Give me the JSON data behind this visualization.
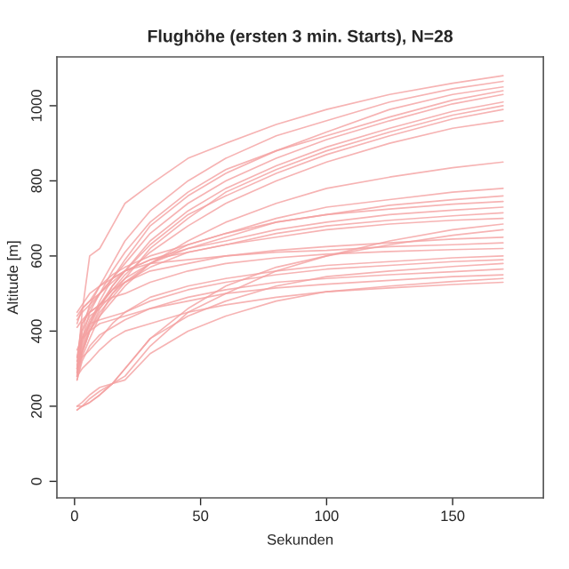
{
  "chart_data": {
    "type": "line",
    "title": "Flughöhe (ersten 3 min. Starts), N=28",
    "xlabel": "Sekunden",
    "ylabel": "Altitude [m]",
    "x": [
      1,
      3,
      6,
      10,
      15,
      20,
      30,
      45,
      60,
      80,
      100,
      125,
      150,
      170
    ],
    "xlim": [
      -7,
      186
    ],
    "ylim": [
      -44,
      1130
    ],
    "xticks": [
      0,
      50,
      100,
      150
    ],
    "yticks": [
      0,
      200,
      400,
      600,
      800,
      1000
    ],
    "line_style": "solid",
    "marker": "none",
    "series": [
      {
        "color": "#f4a0a0",
        "values": [
          300,
          450,
          600,
          620,
          680,
          740,
          790,
          860,
          900,
          950,
          990,
          1030,
          1060,
          1080
        ]
      },
      {
        "color": "#f4a0a0",
        "values": [
          290,
          400,
          470,
          520,
          580,
          640,
          720,
          800,
          860,
          920,
          960,
          1010,
          1045,
          1065
        ]
      },
      {
        "color": "#f4a0a0",
        "values": [
          280,
          380,
          450,
          500,
          540,
          590,
          680,
          760,
          820,
          880,
          930,
          990,
          1030,
          1050
        ]
      },
      {
        "color": "#f4a0a0",
        "values": [
          320,
          420,
          460,
          500,
          560,
          610,
          690,
          770,
          830,
          880,
          920,
          970,
          1015,
          1040
        ]
      },
      {
        "color": "#f4a0a0",
        "values": [
          300,
          360,
          420,
          480,
          540,
          580,
          660,
          740,
          800,
          860,
          910,
          960,
          1005,
          1030
        ]
      },
      {
        "color": "#f4a0a0",
        "values": [
          280,
          340,
          400,
          460,
          520,
          560,
          640,
          720,
          780,
          840,
          890,
          940,
          985,
          1010
        ]
      },
      {
        "color": "#f4a0a0",
        "values": [
          270,
          330,
          380,
          440,
          500,
          540,
          620,
          700,
          770,
          830,
          880,
          930,
          975,
          1000
        ]
      },
      {
        "color": "#f4a0a0",
        "values": [
          290,
          350,
          410,
          470,
          520,
          560,
          630,
          710,
          760,
          820,
          870,
          920,
          965,
          990
        ]
      },
      {
        "color": "#f4a0a0",
        "values": [
          310,
          370,
          420,
          470,
          510,
          550,
          610,
          680,
          740,
          800,
          850,
          900,
          940,
          960
        ]
      },
      {
        "color": "#f4a0a0",
        "values": [
          300,
          350,
          400,
          440,
          480,
          520,
          580,
          640,
          690,
          740,
          780,
          810,
          835,
          850
        ]
      },
      {
        "color": "#f4a0a0",
        "values": [
          290,
          340,
          400,
          450,
          490,
          530,
          580,
          630,
          660,
          700,
          730,
          750,
          770,
          780
        ]
      },
      {
        "color": "#f4a0a0",
        "values": [
          300,
          380,
          430,
          470,
          510,
          540,
          580,
          620,
          650,
          690,
          710,
          735,
          750,
          760
        ]
      },
      {
        "color": "#f4a0a0",
        "values": [
          420,
          460,
          480,
          520,
          550,
          570,
          600,
          630,
          660,
          690,
          710,
          725,
          738,
          745
        ]
      },
      {
        "color": "#f4a0a0",
        "values": [
          440,
          460,
          480,
          500,
          540,
          560,
          590,
          620,
          640,
          670,
          690,
          710,
          722,
          730
        ]
      },
      {
        "color": "#f4a0a0",
        "values": [
          280,
          400,
          440,
          460,
          500,
          530,
          570,
          610,
          630,
          660,
          680,
          695,
          707,
          715
        ]
      },
      {
        "color": "#f4a0a0",
        "values": [
          430,
          450,
          470,
          500,
          530,
          560,
          590,
          610,
          630,
          650,
          670,
          685,
          695,
          700
        ]
      },
      {
        "color": "#f4a0a0",
        "values": [
          200,
          200,
          210,
          230,
          260,
          280,
          360,
          450,
          500,
          560,
          600,
          640,
          670,
          685
        ]
      },
      {
        "color": "#f4a0a0",
        "values": [
          190,
          200,
          220,
          240,
          260,
          300,
          380,
          460,
          520,
          570,
          600,
          630,
          655,
          670
        ]
      },
      {
        "color": "#f4a0a0",
        "values": [
          330,
          420,
          450,
          470,
          510,
          530,
          560,
          580,
          600,
          615,
          625,
          635,
          645,
          650
        ]
      },
      {
        "color": "#f4a0a0",
        "values": [
          450,
          470,
          500,
          520,
          540,
          560,
          580,
          590,
          600,
          610,
          615,
          625,
          630,
          635
        ]
      },
      {
        "color": "#f4a0a0",
        "values": [
          410,
          430,
          450,
          470,
          490,
          500,
          530,
          560,
          580,
          595,
          605,
          612,
          617,
          620
        ]
      },
      {
        "color": "#f4a0a0",
        "values": [
          320,
          330,
          350,
          380,
          420,
          450,
          490,
          520,
          540,
          560,
          575,
          585,
          595,
          600
        ]
      },
      {
        "color": "#f4a0a0",
        "values": [
          350,
          380,
          420,
          430,
          440,
          450,
          480,
          510,
          530,
          550,
          565,
          575,
          585,
          590
        ]
      },
      {
        "color": "#f4a0a0",
        "values": [
          190,
          200,
          210,
          230,
          260,
          300,
          380,
          440,
          480,
          520,
          545,
          560,
          572,
          580
        ]
      },
      {
        "color": "#f4a0a0",
        "values": [
          270,
          320,
          360,
          390,
          410,
          430,
          460,
          490,
          510,
          530,
          540,
          550,
          558,
          565
        ]
      },
      {
        "color": "#f4a0a0",
        "values": [
          330,
          380,
          400,
          420,
          430,
          440,
          460,
          480,
          500,
          515,
          525,
          535,
          545,
          550
        ]
      },
      {
        "color": "#f4a0a0",
        "values": [
          200,
          210,
          230,
          250,
          260,
          270,
          340,
          400,
          440,
          480,
          505,
          520,
          532,
          540
        ]
      },
      {
        "color": "#f4a0a0",
        "values": [
          280,
          300,
          320,
          350,
          380,
          400,
          420,
          450,
          470,
          490,
          505,
          515,
          524,
          530
        ]
      }
    ]
  }
}
